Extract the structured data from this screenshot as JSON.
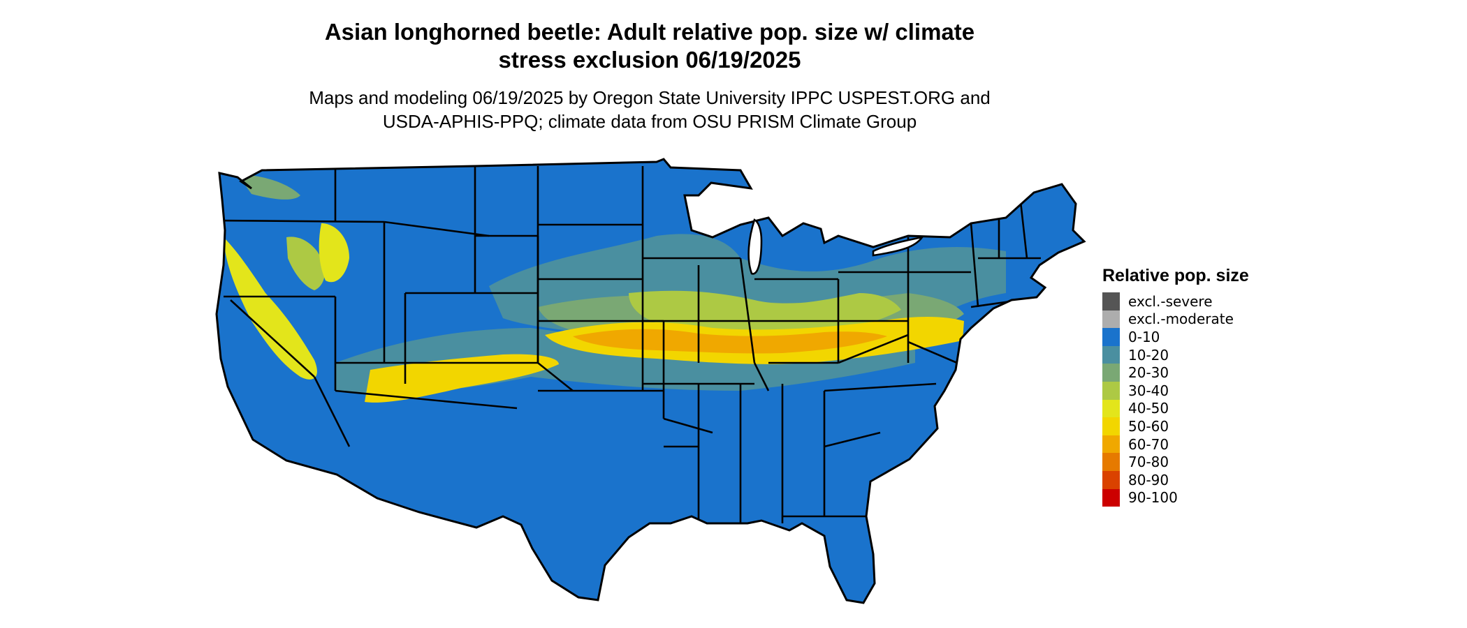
{
  "title": {
    "line1": "Asian longhorned beetle: Adult relative pop. size w/ climate",
    "line2": "stress exclusion 06/19/2025"
  },
  "subtitle": {
    "line1": "Maps and modeling 06/19/2025 by Oregon State University IPPC USPEST.ORG and",
    "line2": "USDA-APHIS-PPQ; climate data from OSU PRISM Climate Group"
  },
  "map": {
    "region": "Contiguous United States",
    "boundaries": "state outlines",
    "zones": [
      {
        "area": "most of country",
        "class": "0-10"
      },
      {
        "area": "northern plains / upper midwest band",
        "class": "10-20"
      },
      {
        "area": "central corn belt",
        "class": "30-40"
      },
      {
        "area": "Kansas / Missouri / Ohio valley",
        "class": "50-60"
      },
      {
        "area": "mid-Atlantic",
        "class": "50-60"
      },
      {
        "area": "Sierra / Great Basin foothills",
        "class": "40-50"
      }
    ]
  },
  "legend": {
    "title": "Relative pop. size",
    "items": [
      {
        "label": "excl.-severe",
        "color": "#555555"
      },
      {
        "label": "excl.-moderate",
        "color": "#adadad"
      },
      {
        "label": "0-10",
        "color": "#1a73cc"
      },
      {
        "label": "10-20",
        "color": "#4a8fa0"
      },
      {
        "label": "20-30",
        "color": "#7aa874"
      },
      {
        "label": "30-40",
        "color": "#adc944"
      },
      {
        "label": "40-50",
        "color": "#e3e51b"
      },
      {
        "label": "50-60",
        "color": "#f2d600"
      },
      {
        "label": "60-70",
        "color": "#f0a800"
      },
      {
        "label": "70-80",
        "color": "#e67a00"
      },
      {
        "label": "80-90",
        "color": "#da4200"
      },
      {
        "label": "90-100",
        "color": "#cc0000"
      }
    ]
  }
}
